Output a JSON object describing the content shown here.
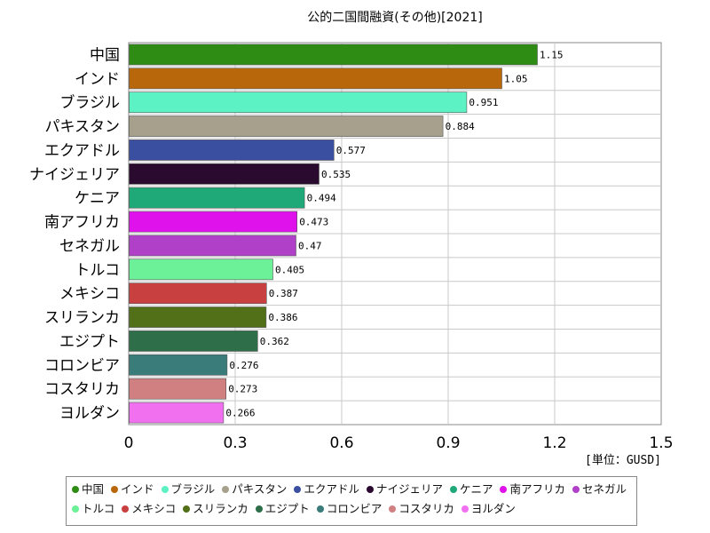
{
  "chart_data": {
    "type": "bar",
    "orientation": "horizontal",
    "title": "公的二国間融資(その他)[2021]",
    "unit_label": "[単位：GUSD]",
    "xlim": [
      0,
      1.5
    ],
    "x_ticks": [
      "0",
      "0.3",
      "0.6",
      "0.9",
      "1.2",
      "1.5"
    ],
    "grid": true,
    "legend_position": "bottom",
    "categories": [
      "中国",
      "インド",
      "ブラジル",
      "パキスタン",
      "エクアドル",
      "ナイジェリア",
      "ケニア",
      "南アフリカ",
      "セネガル",
      "トルコ",
      "メキシコ",
      "スリランカ",
      "エジプト",
      "コロンビア",
      "コスタリカ",
      "ヨルダン"
    ],
    "values": [
      1.15,
      1.05,
      0.951,
      0.884,
      0.577,
      0.535,
      0.494,
      0.473,
      0.47,
      0.405,
      0.387,
      0.386,
      0.362,
      0.276,
      0.273,
      0.266
    ],
    "value_labels": [
      "1.15",
      "1.05",
      "0.951",
      "0.884",
      "0.577",
      "0.535",
      "0.494",
      "0.473",
      "0.47",
      "0.405",
      "0.387",
      "0.386",
      "0.362",
      "0.276",
      "0.273",
      "0.266"
    ],
    "colors": [
      "#2e8b14",
      "#b8680a",
      "#5cf2c4",
      "#a6a08c",
      "#3a4fa0",
      "#2a0a2e",
      "#1fa878",
      "#e012ec",
      "#b040c8",
      "#6cf098",
      "#c84040",
      "#527018",
      "#2e6e48",
      "#3a7c7a",
      "#d08080",
      "#f070f0"
    ]
  }
}
